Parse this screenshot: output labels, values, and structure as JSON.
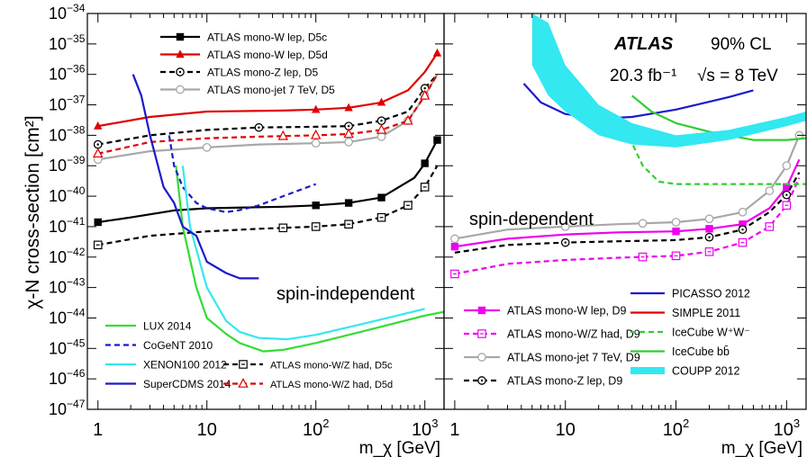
{
  "chart_data": [
    {
      "type": "line",
      "panel": "left",
      "x_scale": "log",
      "y_scale": "log",
      "xlim": [
        0.8,
        1500
      ],
      "ylim": [
        1e-47,
        1e-34
      ],
      "xlabel": "m_χ [GeV]",
      "ylabel": "χ-N cross-section [cm²]",
      "region_label": "spin-independent",
      "series": [
        {
          "name": "ATLAS mono-W lep, D5c",
          "color": "#000000",
          "style": "solid",
          "marker": "square-filled",
          "legend": "top",
          "x": [
            1,
            2,
            5,
            10,
            50,
            100,
            200,
            400,
            800,
            1000,
            1300
          ],
          "y": [
            1.4e-41,
            2e-41,
            3.4e-41,
            4e-41,
            4.5e-41,
            5e-41,
            6e-41,
            9e-41,
            4e-40,
            1.2e-39,
            7e-39
          ],
          "marker_x": [
            1,
            100,
            200,
            400,
            1000,
            1300
          ]
        },
        {
          "name": "ATLAS mono-W lep, D5d",
          "color": "#e00000",
          "style": "solid",
          "marker": "triangle-filled",
          "legend": "top",
          "x": [
            1,
            3,
            10,
            50,
            100,
            200,
            400,
            700,
            1000,
            1300
          ],
          "y": [
            2e-38,
            4e-38,
            6e-38,
            6.5e-38,
            7e-38,
            8e-38,
            1.2e-37,
            3e-37,
            1.2e-36,
            5e-36
          ],
          "marker_x": [
            1,
            100,
            200,
            400,
            1300
          ]
        },
        {
          "name": "ATLAS mono-Z lep, D5",
          "color": "#000000",
          "style": "dashed",
          "marker": "circle-dot",
          "legend": "top",
          "x": [
            1,
            3,
            10,
            30,
            100,
            200,
            400,
            700,
            1000,
            1300
          ],
          "y": [
            5e-39,
            1e-38,
            1.5e-38,
            1.8e-38,
            1.9e-38,
            2e-38,
            3e-38,
            6e-38,
            3.5e-37,
            1e-36
          ],
          "marker_x": [
            1,
            30,
            200,
            400,
            1000
          ]
        },
        {
          "name": "ATLAS mono-jet 7 TeV, D5",
          "color": "#a8a8a8",
          "style": "solid",
          "marker": "circle-open",
          "legend": "top",
          "x": [
            1,
            3,
            10,
            30,
            100,
            200,
            400,
            700,
            1000,
            1300
          ],
          "y": [
            1.6e-39,
            3e-39,
            4e-39,
            5e-39,
            5.5e-39,
            6e-39,
            9e-39,
            3e-38,
            2e-37,
            1e-36
          ],
          "marker_x": [
            1,
            10,
            100,
            200,
            400,
            700,
            1000
          ]
        },
        {
          "name": "ATLAS mono-W/Z had, D5c",
          "color": "#000000",
          "style": "dashed",
          "marker": "square-dot",
          "legend": "bottom",
          "x": [
            1,
            3,
            10,
            30,
            100,
            200,
            400,
            700,
            1000,
            1300
          ],
          "y": [
            2.5e-42,
            5e-42,
            7e-42,
            8.5e-42,
            1e-41,
            1.2e-41,
            2e-41,
            5e-41,
            2e-40,
            1e-39
          ],
          "marker_x": [
            1,
            50,
            100,
            200,
            400,
            700,
            1000
          ]
        },
        {
          "name": "ATLAS mono-W/Z had, D5d",
          "color": "#e00000",
          "style": "dashed",
          "marker": "triangle-open",
          "legend": "bottom",
          "x": [
            1,
            3,
            10,
            30,
            100,
            200,
            400,
            700,
            1000,
            1300
          ],
          "y": [
            2.5e-39,
            6e-39,
            8e-39,
            9e-39,
            1e-38,
            1.1e-38,
            1.5e-38,
            3e-38,
            2e-37,
            1e-36
          ],
          "marker_x": [
            1,
            50,
            100,
            200,
            400,
            700,
            1000
          ]
        },
        {
          "name": "LUX 2014",
          "color": "#33dd33",
          "style": "solid",
          "legend": "bottom",
          "x": [
            5.2,
            6,
            8,
            10,
            15,
            20,
            33,
            50,
            100,
            300,
            1000,
            1500
          ],
          "y": [
            1e-39,
            1e-41,
            1e-43,
            1e-44,
            3e-45,
            1.5e-45,
            8e-46,
            9e-46,
            1.5e-45,
            4e-45,
            1.2e-44,
            1.6e-44
          ]
        },
        {
          "name": "CoGeNT 2010",
          "color": "#1a1acc",
          "style": "dashed",
          "legend": "bottom",
          "x": [
            4.5,
            5,
            6,
            8,
            10,
            15,
            20,
            30,
            50,
            100
          ],
          "y": [
            1e-38,
            1e-39,
            2e-40,
            6e-41,
            4e-41,
            3e-41,
            3.5e-41,
            5e-41,
            1e-40,
            2.5e-40
          ]
        },
        {
          "name": "XENON100 2012",
          "color": "#33e8f0",
          "style": "solid",
          "legend": "bottom",
          "x": [
            6,
            7,
            10,
            15,
            20,
            30,
            55,
            100,
            300,
            1000
          ],
          "y": [
            1e-39,
            1e-41,
            1e-43,
            8e-45,
            3.5e-45,
            2.2e-45,
            2e-45,
            2.8e-45,
            7e-45,
            2e-44
          ]
        },
        {
          "name": "SuperCDMS 2014",
          "color": "#1a1acc",
          "style": "solid",
          "legend": "bottom",
          "x": [
            2.1,
            2.5,
            3,
            4,
            5,
            6,
            8,
            10,
            15,
            20,
            30
          ],
          "y": [
            1e-36,
            2e-37,
            1e-38,
            2e-40,
            6e-41,
            1e-41,
            5e-42,
            7e-43,
            3e-43,
            2e-43,
            2e-43
          ]
        }
      ]
    },
    {
      "type": "line",
      "panel": "right",
      "x_scale": "log",
      "y_scale": "log",
      "xlim": [
        0.8,
        1500
      ],
      "ylim": [
        1e-47,
        1e-34
      ],
      "xlabel": "m_χ [GeV]",
      "region_label": "spin-dependent",
      "annotation": {
        "experiment": "ATLAS",
        "cl": "90% CL",
        "lumi": "20.3 fb⁻¹",
        "energy": "√s = 8 TeV"
      },
      "series": [
        {
          "name": "ATLAS mono-W lep, D9",
          "color": "#ee00ee",
          "style": "solid",
          "marker": "square-filled",
          "legend": "left",
          "x": [
            1,
            3,
            10,
            30,
            100,
            200,
            400,
            700,
            1000,
            1300
          ],
          "y": [
            2.2e-42,
            4e-42,
            5.5e-42,
            6.5e-42,
            7e-42,
            8.5e-42,
            1.2e-41,
            4e-41,
            2e-40,
            1.6e-39
          ],
          "marker_x": [
            1,
            100,
            200,
            400,
            1000
          ]
        },
        {
          "name": "ATLAS mono-W/Z had, D9",
          "color": "#ee00ee",
          "style": "dashed",
          "marker": "square-dot",
          "legend": "left",
          "x": [
            1,
            3,
            10,
            30,
            100,
            200,
            400,
            700,
            1000,
            1300
          ],
          "y": [
            2.8e-43,
            6e-43,
            8e-43,
            9.5e-43,
            1.1e-42,
            1.5e-42,
            3e-42,
            1e-41,
            5e-41,
            4e-40
          ],
          "marker_x": [
            1,
            50,
            100,
            200,
            400,
            700,
            1000
          ]
        },
        {
          "name": "ATLAS mono-jet 7 TeV, D9",
          "color": "#a8a8a8",
          "style": "solid",
          "marker": "circle-open",
          "legend": "left",
          "x": [
            1,
            3,
            10,
            30,
            100,
            200,
            400,
            700,
            1000,
            1300
          ],
          "y": [
            4e-42,
            8e-42,
            1e-41,
            1.2e-41,
            1.4e-41,
            1.8e-41,
            3e-41,
            1.5e-40,
            1e-39,
            1e-38
          ],
          "marker_x": [
            1,
            10,
            50,
            100,
            200,
            400,
            700,
            1000,
            1300
          ]
        },
        {
          "name": "ATLAS mono-Z lep, D9",
          "color": "#000000",
          "style": "dashed",
          "marker": "circle-dot",
          "legend": "left",
          "x": [
            1,
            3,
            10,
            30,
            100,
            200,
            400,
            700,
            1000,
            1300
          ],
          "y": [
            1.4e-42,
            2.5e-42,
            3e-42,
            3.3e-42,
            3.6e-42,
            4.5e-42,
            8e-42,
            3e-41,
            1.1e-40,
            6e-40
          ],
          "marker_x": [
            10,
            200,
            400,
            1000
          ]
        },
        {
          "name": "PICASSO 2012",
          "color": "#1a1acc",
          "style": "solid",
          "legend": "right",
          "x": [
            4.2,
            6,
            10,
            20,
            40,
            100,
            300,
            500
          ],
          "y": [
            5e-37,
            1.2e-37,
            5e-38,
            3.5e-38,
            4e-38,
            7e-38,
            1.8e-37,
            3e-37
          ]
        },
        {
          "name": "SIMPLE 2011",
          "color": "#e00000",
          "style": "solid",
          "legend": "right",
          "x": [
            6.5,
            10,
            20,
            40,
            100,
            300,
            1000,
            1500
          ],
          "y": [
            2e-36,
            1e-37,
            1.8e-38,
            7e-39,
            5e-39,
            1.2e-38,
            3.5e-38,
            5e-38
          ]
        },
        {
          "name": "IceCube W⁺W⁻",
          "color": "#33cc33",
          "style": "dashed",
          "legend": "right",
          "x": [
            35,
            50,
            70,
            100,
            200,
            500,
            1000,
            1500
          ],
          "y": [
            1.6e-38,
            1e-39,
            3e-40,
            2.5e-40,
            2.5e-40,
            2.5e-40,
            2.5e-40,
            2.5e-40
          ]
        },
        {
          "name": "IceCube bb̄",
          "color": "#33cc33",
          "style": "solid",
          "legend": "right",
          "x": [
            40,
            60,
            100,
            200,
            500,
            1000,
            1500
          ],
          "y": [
            2e-37,
            6e-38,
            2.5e-38,
            1.3e-38,
            7e-39,
            7e-39,
            8e-39
          ]
        },
        {
          "name": "COUPP 2012",
          "color": "#33e8f0",
          "style": "band",
          "legend": "right",
          "x": [
            5,
            7,
            10,
            20,
            40,
            100,
            300,
            1000,
            1500
          ],
          "y_low": [
            2e-36,
            2e-37,
            6e-38,
            1e-38,
            5e-39,
            4e-39,
            7e-39,
            2e-38,
            3e-38
          ],
          "y_high": [
            1e-34,
            5e-35,
            2e-36,
            1e-37,
            2.5e-38,
            1e-38,
            1.5e-38,
            4e-38,
            6e-38
          ]
        }
      ]
    }
  ],
  "axis": {
    "x_ticks": [
      {
        "v": 1,
        "label": "1"
      },
      {
        "v": 10,
        "label": "10"
      },
      {
        "v": 100,
        "label": "10",
        "exp": "2"
      },
      {
        "v": 1000,
        "label": "10",
        "exp": "3"
      }
    ],
    "y_exponents": [
      -34,
      -35,
      -36,
      -37,
      -38,
      -39,
      -40,
      -41,
      -42,
      -43,
      -44,
      -45,
      -46,
      -47
    ]
  },
  "legend_left_top": [
    "ATLAS mono-W lep, D5c",
    "ATLAS mono-W lep, D5d",
    "ATLAS mono-Z lep, D5",
    "ATLAS mono-jet 7 TeV, D5"
  ],
  "legend_left_bottom_col1": [
    "LUX 2014",
    "CoGeNT 2010",
    "XENON100 2012",
    "SuperCDMS 2014"
  ],
  "legend_left_bottom_col2": [
    "ATLAS mono-W/Z had, D5c",
    "ATLAS mono-W/Z had, D5d"
  ],
  "legend_right_col1": [
    "ATLAS mono-W lep, D9",
    "ATLAS mono-W/Z had, D9",
    "ATLAS mono-jet 7 TeV, D9",
    "ATLAS mono-Z lep, D9"
  ],
  "legend_right_col2": [
    "PICASSO 2012",
    "SIMPLE 2011",
    "IceCube W⁺W⁻",
    "IceCube bb̄",
    "COUPP 2012"
  ]
}
